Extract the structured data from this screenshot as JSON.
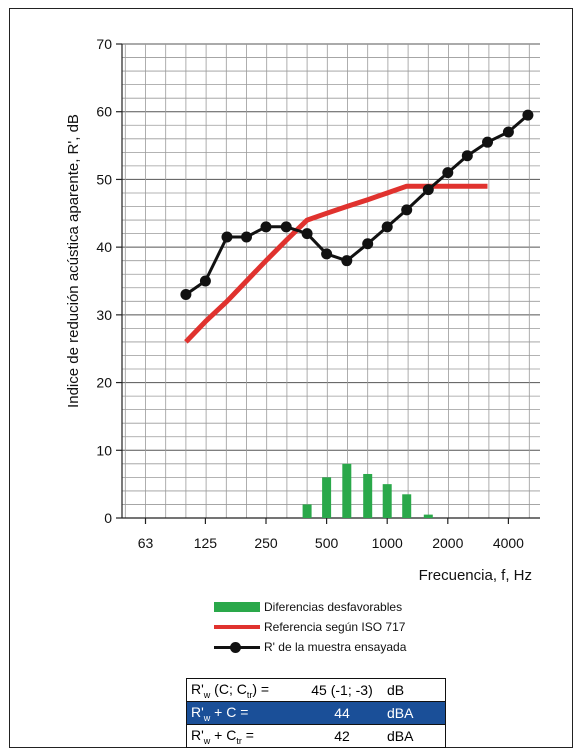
{
  "chart_data": {
    "type": "line",
    "ylabel": "Indice de redución acústica aparente, R', dB",
    "xlabel": "Frecuencia, f, Hz",
    "ylim": [
      0,
      70
    ],
    "yticks": [
      "0",
      "10",
      "20",
      "30",
      "40",
      "50",
      "60",
      "70"
    ],
    "xticks": [
      "63",
      "125",
      "250",
      "500",
      "1000",
      "2000",
      "4000"
    ],
    "grid": true,
    "x_bands_hz": [
      100,
      125,
      160,
      200,
      250,
      315,
      400,
      500,
      630,
      800,
      1000,
      1250,
      1600,
      2000,
      2500,
      3150,
      4000,
      5000
    ],
    "series": [
      {
        "name": "R' de la muestra ensayada",
        "color": "#111111",
        "style": "line-marker",
        "values": [
          33,
          35,
          41.5,
          41.5,
          43,
          43,
          42,
          39,
          38,
          40.5,
          43,
          45.5,
          48.5,
          51,
          53.5,
          55.5,
          57,
          59.5
        ]
      },
      {
        "name": "Referencia según ISO 717",
        "color": "#e0322e",
        "style": "line",
        "values": [
          26,
          29,
          32,
          35,
          38,
          41,
          44,
          45,
          46,
          47,
          48,
          49,
          49,
          49,
          49,
          49
        ]
      },
      {
        "name": "Diferencias desfavorables",
        "color": "#2aa84a",
        "style": "bar",
        "values": [
          0,
          0,
          0,
          0,
          0,
          0,
          2,
          6,
          8,
          6.5,
          5,
          3.5,
          0.5,
          0,
          0,
          0
        ]
      }
    ],
    "legend_position": "below"
  },
  "legend": {
    "bars": "Diferencias desfavorables",
    "reference": "Referencia según ISO 717",
    "measured": "R' de la muestra ensayada"
  },
  "ratings": [
    {
      "label": "R'",
      "sub1": "w",
      "mid": " (C; C",
      "sub2": "tr",
      "end": ") =",
      "value": "45 (-1; -3)",
      "unit": "dB"
    },
    {
      "label": "R'",
      "sub1": "w",
      "mid": " + C =",
      "sub2": "",
      "end": "",
      "value": "44",
      "unit": "dBA"
    },
    {
      "label": "R'",
      "sub1": "w",
      "mid": " + C",
      "sub2": "tr",
      "end": " =",
      "value": "42",
      "unit": "dBA"
    }
  ]
}
